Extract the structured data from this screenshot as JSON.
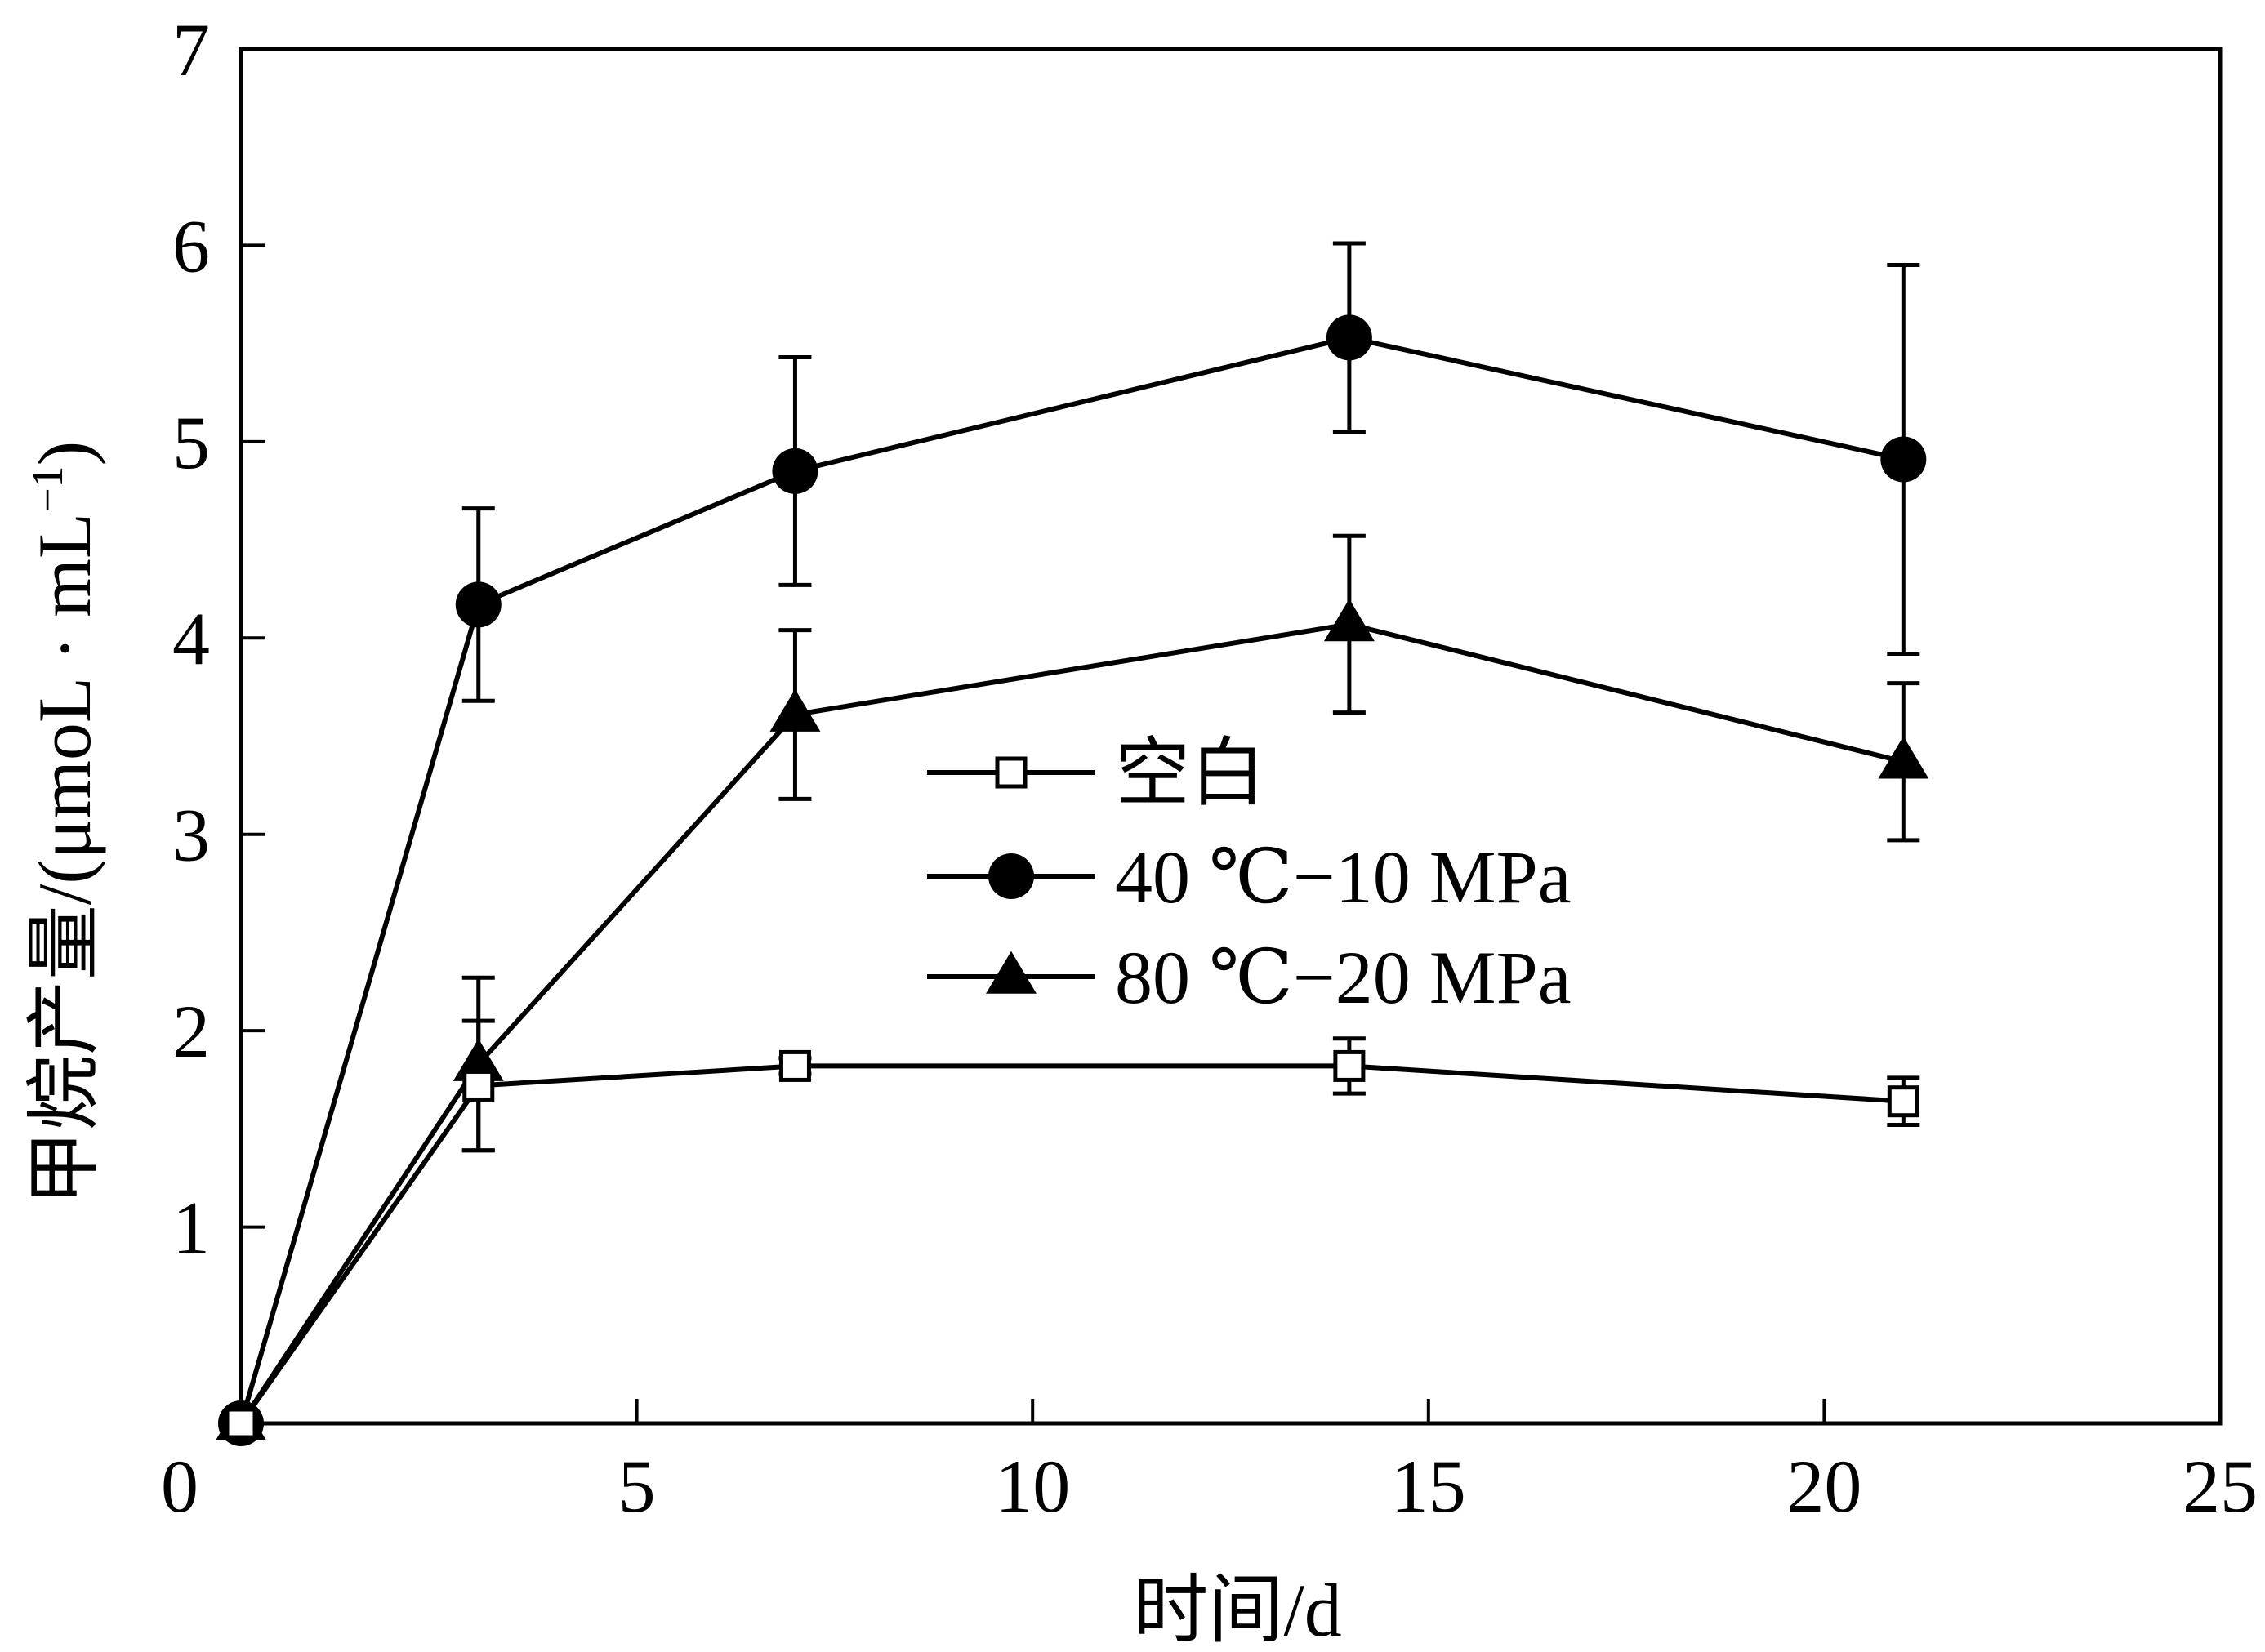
{
  "chart_data": {
    "type": "line",
    "xlabel": "时间/d",
    "ylabel_main": "甲烷产量/(μmoL · mL",
    "ylabel_sup": "−1",
    "ylabel_close": ")",
    "xlim": [
      0,
      25
    ],
    "ylim": [
      0,
      7
    ],
    "xticks": [
      0,
      5,
      10,
      15,
      20,
      25
    ],
    "yticks": [
      1,
      2,
      3,
      4,
      5,
      6,
      7
    ],
    "x_tick_labels": [
      "0",
      "5",
      "10",
      "15",
      "20",
      "25"
    ],
    "y_tick_labels": [
      "1",
      "2",
      "3",
      "4",
      "5",
      "6",
      "7"
    ],
    "grid": false,
    "legend_position": "center-right",
    "series": [
      {
        "name": "空白",
        "marker": "open-square",
        "x": [
          0,
          3,
          7,
          14,
          21
        ],
        "y": [
          0,
          1.72,
          1.82,
          1.82,
          1.64
        ],
        "err": [
          0,
          0.33,
          0.04,
          0.14,
          0.12
        ]
      },
      {
        "name": "40 ℃−10 MPa",
        "marker": "filled-circle",
        "x": [
          0,
          3,
          7,
          14,
          21
        ],
        "y": [
          0,
          4.17,
          4.85,
          5.53,
          4.91
        ],
        "err": [
          0,
          0.49,
          0.58,
          0.48,
          0.99
        ]
      },
      {
        "name": "80 ℃−20 MPa",
        "marker": "filled-triangle",
        "x": [
          0,
          3,
          7,
          14,
          21
        ],
        "y": [
          0,
          1.83,
          3.61,
          4.07,
          3.37
        ],
        "err": [
          0,
          0.44,
          0.43,
          0.45,
          0.4
        ]
      }
    ]
  }
}
